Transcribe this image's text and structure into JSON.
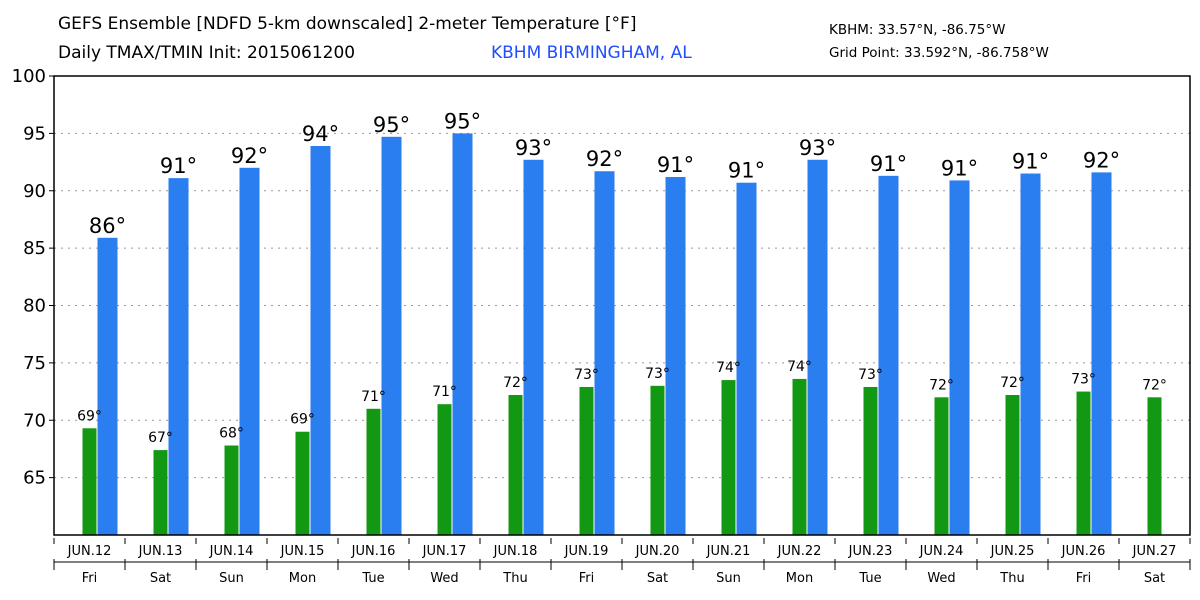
{
  "header": {
    "title_line1": "GEFS Ensemble [NDFD 5-km downscaled] 2-meter Temperature [°F]",
    "title_line2": "Daily TMAX/TMIN Init: 2015061200",
    "station": "KBHM BIRMINGHAM, AL",
    "coord_station": "KBHM: 33.57°N, -86.75°W",
    "coord_grid": "Grid Point: 33.592°N, -86.758°W"
  },
  "colors": {
    "tmax": "#2b7ef0",
    "tmin": "#129812"
  },
  "chart_data": {
    "type": "bar",
    "title": "GEFS Ensemble [NDFD 5-km downscaled] 2-meter Temperature [°F]",
    "ylim": [
      60,
      100
    ],
    "yticks": [
      65,
      70,
      75,
      80,
      85,
      90,
      95,
      100
    ],
    "grid": true,
    "categories": [
      "JUN.12",
      "JUN.13",
      "JUN.14",
      "JUN.15",
      "JUN.16",
      "JUN.17",
      "JUN.18",
      "JUN.19",
      "JUN.20",
      "JUN.21",
      "JUN.22",
      "JUN.23",
      "JUN.24",
      "JUN.25",
      "JUN.26",
      "JUN.27"
    ],
    "days": [
      "Fri",
      "Sat",
      "Sun",
      "Mon",
      "Tue",
      "Wed",
      "Thu",
      "Fri",
      "Sat",
      "Sun",
      "Mon",
      "Tue",
      "Wed",
      "Thu",
      "Fri",
      "Sat"
    ],
    "tmin": {
      "name": "TMIN",
      "values": [
        69.3,
        67.4,
        67.8,
        69.0,
        71.0,
        71.4,
        72.2,
        72.9,
        73.0,
        73.5,
        73.6,
        72.9,
        72.0,
        72.2,
        72.5,
        72.0
      ],
      "labels": [
        "69°",
        "67°",
        "68°",
        "69°",
        "71°",
        "71°",
        "72°",
        "73°",
        "73°",
        "74°",
        "74°",
        "73°",
        "72°",
        "72°",
        "73°",
        "72°"
      ]
    },
    "tmax": {
      "name": "TMAX",
      "values": [
        85.9,
        91.1,
        92.0,
        93.9,
        94.7,
        95.0,
        92.7,
        91.7,
        91.2,
        90.7,
        92.7,
        91.3,
        90.9,
        91.5,
        91.6
      ],
      "labels": [
        "86°",
        "91°",
        "92°",
        "94°",
        "95°",
        "95°",
        "93°",
        "92°",
        "91°",
        "91°",
        "93°",
        "91°",
        "91°",
        "91°",
        "92°"
      ]
    }
  }
}
